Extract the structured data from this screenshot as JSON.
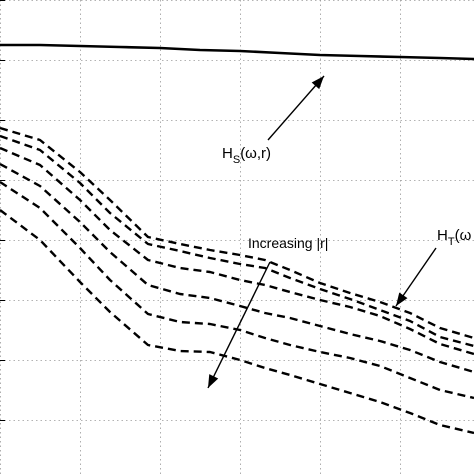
{
  "chart_data": {
    "type": "line",
    "title": "",
    "xlabel": "",
    "ylabel": "",
    "grid": true,
    "gridlines_x": [
      0,
      80,
      160,
      240,
      320,
      400
    ],
    "gridlines_y": [
      0,
      60,
      120,
      180,
      240,
      300,
      360,
      420
    ],
    "series": [
      {
        "name": "",
        "style": "solid",
        "points": [
          [
            0,
            45
          ],
          [
            40,
            45
          ],
          [
            80,
            46
          ],
          [
            120,
            47
          ],
          [
            160,
            48
          ],
          [
            200,
            50
          ],
          [
            240,
            51
          ],
          [
            280,
            53
          ],
          [
            320,
            55
          ],
          [
            360,
            56
          ],
          [
            400,
            57
          ],
          [
            440,
            58
          ],
          [
            474,
            59
          ]
        ]
      },
      {
        "name": "",
        "style": "dashed",
        "points": [
          [
            0,
            128
          ],
          [
            40,
            140
          ],
          [
            80,
            172
          ],
          [
            110,
            200
          ],
          [
            148,
            237
          ],
          [
            180,
            244
          ],
          [
            210,
            250
          ],
          [
            240,
            255
          ],
          [
            265,
            260
          ],
          [
            290,
            270
          ],
          [
            320,
            283
          ],
          [
            350,
            293
          ],
          [
            380,
            302
          ],
          [
            410,
            313
          ],
          [
            440,
            328
          ],
          [
            474,
            338
          ]
        ]
      },
      {
        "name": "",
        "style": "dashed",
        "points": [
          [
            0,
            136
          ],
          [
            40,
            150
          ],
          [
            80,
            183
          ],
          [
            110,
            213
          ],
          [
            148,
            244
          ],
          [
            180,
            251
          ],
          [
            210,
            258
          ],
          [
            240,
            264
          ],
          [
            265,
            268
          ],
          [
            290,
            278
          ],
          [
            320,
            289
          ],
          [
            350,
            299
          ],
          [
            380,
            310
          ],
          [
            410,
            321
          ],
          [
            440,
            337
          ],
          [
            474,
            346
          ]
        ]
      },
      {
        "name": "",
        "style": "dashed",
        "points": [
          [
            0,
            148
          ],
          [
            40,
            165
          ],
          [
            80,
            200
          ],
          [
            110,
            230
          ],
          [
            148,
            260
          ],
          [
            180,
            268
          ],
          [
            210,
            272
          ],
          [
            240,
            280
          ],
          [
            265,
            285
          ],
          [
            290,
            292
          ],
          [
            320,
            300
          ],
          [
            350,
            307
          ],
          [
            380,
            316
          ],
          [
            410,
            329
          ],
          [
            440,
            344
          ],
          [
            474,
            354
          ]
        ]
      },
      {
        "name": "",
        "style": "dashed",
        "points": [
          [
            0,
            164
          ],
          [
            40,
            186
          ],
          [
            80,
            222
          ],
          [
            110,
            252
          ],
          [
            148,
            285
          ],
          [
            180,
            294
          ],
          [
            210,
            298
          ],
          [
            240,
            306
          ],
          [
            265,
            313
          ],
          [
            290,
            318
          ],
          [
            320,
            326
          ],
          [
            350,
            334
          ],
          [
            380,
            341
          ],
          [
            410,
            350
          ],
          [
            440,
            362
          ],
          [
            474,
            372
          ]
        ]
      },
      {
        "name": "",
        "style": "dashed",
        "points": [
          [
            0,
            182
          ],
          [
            40,
            208
          ],
          [
            80,
            248
          ],
          [
            110,
            280
          ],
          [
            148,
            314
          ],
          [
            180,
            322
          ],
          [
            210,
            324
          ],
          [
            240,
            330
          ],
          [
            265,
            338
          ],
          [
            290,
            345
          ],
          [
            320,
            352
          ],
          [
            350,
            358
          ],
          [
            380,
            366
          ],
          [
            410,
            378
          ],
          [
            440,
            390
          ],
          [
            474,
            398
          ]
        ]
      },
      {
        "name": "",
        "style": "dashed",
        "points": [
          [
            0,
            210
          ],
          [
            40,
            240
          ],
          [
            80,
            282
          ],
          [
            110,
            312
          ],
          [
            148,
            345
          ],
          [
            180,
            351
          ],
          [
            210,
            352
          ],
          [
            240,
            360
          ],
          [
            265,
            368
          ],
          [
            290,
            375
          ],
          [
            320,
            384
          ],
          [
            350,
            393
          ],
          [
            380,
            402
          ],
          [
            410,
            413
          ],
          [
            440,
            425
          ],
          [
            474,
            433
          ]
        ]
      }
    ],
    "annotations": [
      {
        "id": "hs",
        "main": "H",
        "sub": "S",
        "rest": "(ω,r)",
        "arrow": [
          [
            268,
            140
          ],
          [
            324,
            76
          ]
        ]
      },
      {
        "id": "ht",
        "main": "H",
        "sub": "T",
        "rest": "(ω",
        "arrow": [
          [
            436,
            248
          ],
          [
            396,
            306
          ]
        ]
      },
      {
        "id": "increasing",
        "main": "Increasing |r|",
        "arrow": [
          [
            270,
            262
          ],
          [
            208,
            388
          ]
        ]
      }
    ]
  }
}
